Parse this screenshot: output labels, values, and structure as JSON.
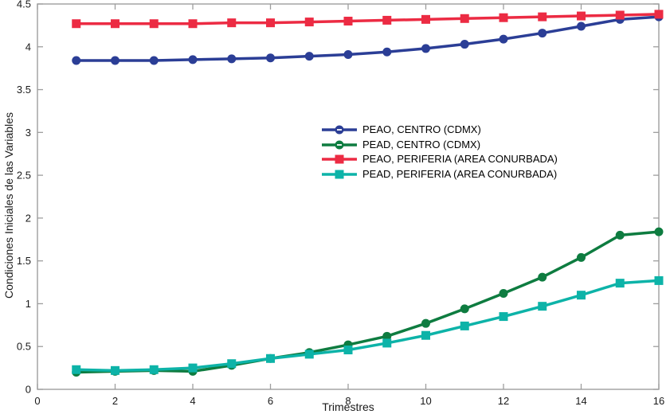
{
  "figure": {
    "background": "#ffffff"
  },
  "axis": {
    "color": "#9e9e9e",
    "tick_label_color": "#1a1a1a"
  },
  "chart_data": {
    "type": "line",
    "title": "",
    "xlabel": "Trimestres",
    "ylabel": "Condiciones Iniciales de las Variables",
    "xlim": [
      0,
      16
    ],
    "ylim": [
      0,
      4.5
    ],
    "x_ticks": [
      0,
      2,
      4,
      6,
      8,
      10,
      12,
      14,
      16
    ],
    "y_ticks": [
      0,
      0.5,
      1,
      1.5,
      2,
      2.5,
      3,
      3.5,
      4,
      4.5
    ],
    "grid": false,
    "legend_position": "center-right, no border",
    "x": [
      1,
      2,
      3,
      4,
      5,
      6,
      7,
      8,
      9,
      10,
      11,
      12,
      13,
      14,
      15,
      16
    ],
    "series": [
      {
        "name": "PEAO, CENTRO (CDMX)",
        "color": "#2B3E96",
        "marker": "circle",
        "values": [
          3.84,
          3.84,
          3.84,
          3.85,
          3.86,
          3.87,
          3.89,
          3.91,
          3.94,
          3.98,
          4.03,
          4.09,
          4.16,
          4.24,
          4.32,
          4.35
        ]
      },
      {
        "name": "PEAD, CENTRO (CDMX)",
        "color": "#0E7C40",
        "marker": "circle",
        "values": [
          0.2,
          0.21,
          0.22,
          0.21,
          0.28,
          0.36,
          0.43,
          0.52,
          0.62,
          0.77,
          0.94,
          1.12,
          1.31,
          1.54,
          1.8,
          1.84
        ]
      },
      {
        "name": "PEAO, PERIFERIA (AREA CONURBADA)",
        "color": "#EC2B43",
        "marker": "square",
        "values": [
          4.27,
          4.27,
          4.27,
          4.27,
          4.28,
          4.28,
          4.29,
          4.3,
          4.31,
          4.32,
          4.33,
          4.34,
          4.35,
          4.36,
          4.37,
          4.38
        ]
      },
      {
        "name": "PEAD, PERIFERIA (AREA CONURBADA)",
        "color": "#0DB3A8",
        "marker": "square",
        "values": [
          0.23,
          0.22,
          0.23,
          0.25,
          0.3,
          0.36,
          0.41,
          0.46,
          0.54,
          0.63,
          0.74,
          0.85,
          0.97,
          1.1,
          1.24,
          1.27
        ]
      }
    ]
  }
}
